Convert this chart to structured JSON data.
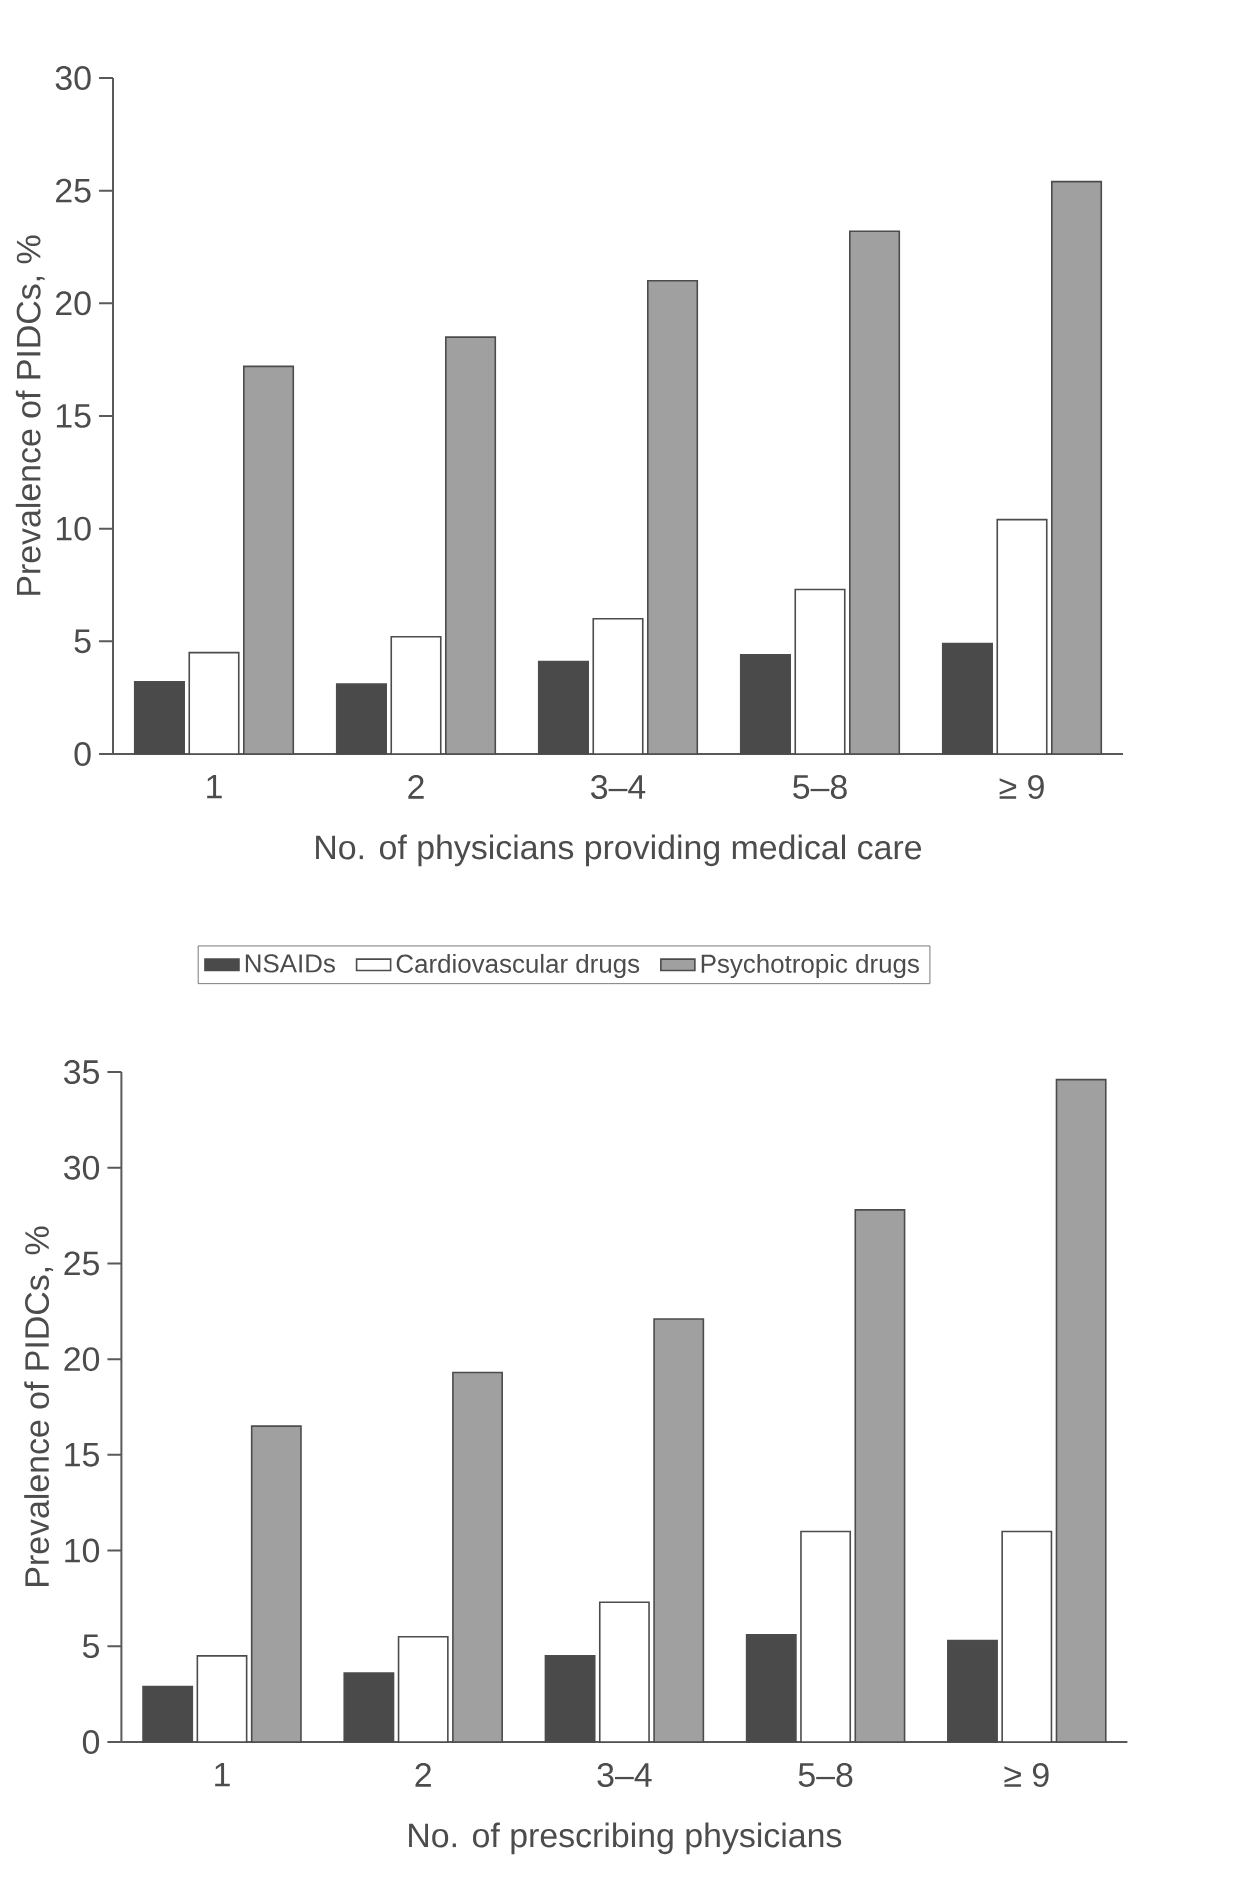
{
  "chart_data": [
    {
      "type": "bar",
      "xlabel": "No. of physicians providing medical care",
      "ylabel": "Prevalence of PIDCs, %",
      "categories": [
        "1",
        "2",
        "3–4",
        "5–8",
        "≥ 9"
      ],
      "series": [
        {
          "color": "#4a4a4a",
          "values": [
            3.2,
            3.1,
            4.1,
            4.4,
            4.9
          ]
        },
        {
          "color": "#ffffff",
          "values": [
            4.5,
            5.2,
            6.0,
            7.3,
            10.4
          ]
        },
        {
          "color": "#a0a0a0",
          "values": [
            17.2,
            18.5,
            21.0,
            23.2,
            25.4
          ]
        }
      ],
      "ylim": [
        0,
        30
      ],
      "yticks": [
        0,
        5,
        10,
        15,
        20,
        25,
        30
      ],
      "grid": false,
      "legend": false
    },
    {
      "type": "bar",
      "xlabel": "No. of prescribing physicians",
      "ylabel": "Prevalence of PIDCs, %",
      "categories": [
        "1",
        "2",
        "3–4",
        "5–8",
        "≥ 9"
      ],
      "series": [
        {
          "name": "NSAIDs",
          "color": "#4a4a4a",
          "values": [
            2.9,
            3.6,
            4.5,
            5.6,
            5.3
          ]
        },
        {
          "name": "Cardiovascular drugs",
          "color": "#ffffff",
          "values": [
            4.5,
            5.5,
            7.3,
            11.0,
            11.0
          ]
        },
        {
          "name": "Psychotropic drugs",
          "color": "#a0a0a0",
          "values": [
            16.5,
            19.3,
            22.1,
            27.8,
            34.6
          ]
        }
      ],
      "ylim": [
        0,
        35
      ],
      "yticks": [
        0,
        5,
        10,
        15,
        20,
        25,
        30,
        35
      ],
      "grid": false,
      "legend": "top"
    }
  ]
}
